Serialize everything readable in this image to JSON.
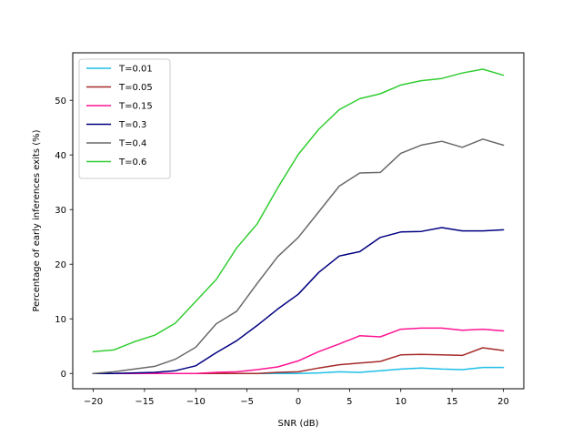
{
  "chart_data": {
    "type": "line",
    "title": "",
    "xlabel": "SNR (dB)",
    "ylabel": "Percentage of early inferences exits (%)",
    "xlim": [
      -22,
      22
    ],
    "ylim": [
      -2.8,
      58.7
    ],
    "xticks": [
      -20,
      -15,
      -10,
      -5,
      0,
      5,
      10,
      15,
      20
    ],
    "xtick_labels": [
      "−20",
      "−15",
      "−10",
      "−5",
      "0",
      "5",
      "10",
      "15",
      "20"
    ],
    "yticks": [
      0,
      10,
      20,
      30,
      40,
      50
    ],
    "ytick_labels": [
      "0",
      "10",
      "20",
      "30",
      "40",
      "50"
    ],
    "grid": false,
    "legend_position": "top-left",
    "x": [
      -20,
      -18,
      -16,
      -14,
      -12,
      -10,
      -8,
      -6,
      -4,
      -2,
      0,
      2,
      4,
      6,
      8,
      10,
      12,
      14,
      16,
      18,
      20
    ],
    "series": [
      {
        "name": "T=0.01",
        "color": "#1fbfe8",
        "values": [
          0.0,
          0.0,
          0.0,
          0.0,
          0.0,
          0.0,
          0.0,
          0.0,
          0.0,
          0.0,
          0.0,
          0.1,
          0.3,
          0.2,
          0.5,
          0.8,
          1.0,
          0.8,
          0.7,
          1.1,
          1.1
        ]
      },
      {
        "name": "T=0.05",
        "color": "#a52a2a",
        "values": [
          0.0,
          0.0,
          0.0,
          0.0,
          0.0,
          0.0,
          0.0,
          0.0,
          0.0,
          0.2,
          0.3,
          1.0,
          1.6,
          1.9,
          2.2,
          3.4,
          3.5,
          3.4,
          3.3,
          4.7,
          4.2
        ]
      },
      {
        "name": "T=0.15",
        "color": "#ff1493",
        "values": [
          0.0,
          0.0,
          0.0,
          0.0,
          0.0,
          0.0,
          0.2,
          0.3,
          0.7,
          1.2,
          2.3,
          4.0,
          5.4,
          6.9,
          6.7,
          8.1,
          8.3,
          8.3,
          7.9,
          8.1,
          7.8
        ]
      },
      {
        "name": "T=0.3",
        "color": "#000080",
        "values": [
          0.0,
          0.0,
          0.1,
          0.2,
          0.5,
          1.4,
          3.8,
          6.0,
          8.8,
          11.8,
          14.5,
          18.5,
          21.5,
          22.3,
          24.9,
          25.9,
          26.0,
          26.7,
          26.1,
          26.1,
          26.3
        ]
      },
      {
        "name": "T=0.4",
        "color": "#696969",
        "values": [
          0.0,
          0.3,
          0.8,
          1.3,
          2.6,
          4.8,
          9.1,
          11.4,
          16.5,
          21.4,
          24.9,
          29.6,
          34.3,
          36.7,
          36.8,
          40.3,
          41.8,
          42.5,
          41.4,
          42.9,
          41.8
        ]
      },
      {
        "name": "T=0.6",
        "color": "#32cd32",
        "values": [
          4.0,
          4.3,
          5.8,
          7.0,
          9.2,
          13.2,
          17.2,
          23.0,
          27.4,
          34.0,
          40.1,
          44.7,
          48.3,
          50.3,
          51.2,
          52.8,
          53.6,
          54.0,
          55.0,
          55.7,
          54.6
        ]
      }
    ]
  }
}
